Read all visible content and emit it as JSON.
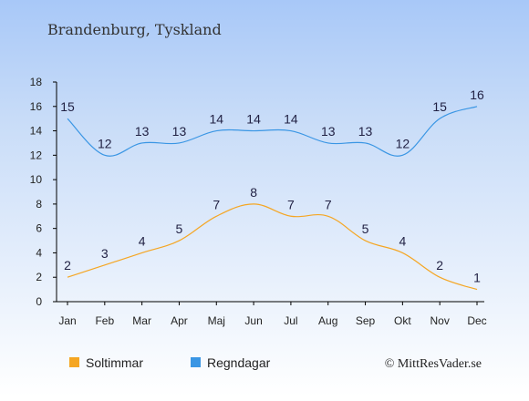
{
  "chart_data": {
    "type": "line",
    "title": "Brandenburg, Tyskland",
    "categories": [
      "Jan",
      "Feb",
      "Mar",
      "Apr",
      "Maj",
      "Jun",
      "Jul",
      "Aug",
      "Sep",
      "Okt",
      "Nov",
      "Dec"
    ],
    "ylim": [
      0,
      18
    ],
    "yticks": [
      0,
      2,
      4,
      6,
      8,
      10,
      12,
      14,
      16,
      18
    ],
    "grid": false,
    "legend_position": "bottom-left",
    "series": [
      {
        "name": "Soltimmar",
        "color": "#f5a623",
        "values": [
          2,
          3,
          4,
          5,
          7,
          8,
          7,
          7,
          5,
          4,
          2,
          1
        ]
      },
      {
        "name": "Regndagar",
        "color": "#3a96e4",
        "values": [
          15,
          12,
          13,
          13,
          14,
          14,
          14,
          13,
          13,
          12,
          15,
          16
        ]
      }
    ],
    "copyright": "© MittResVader.se"
  }
}
